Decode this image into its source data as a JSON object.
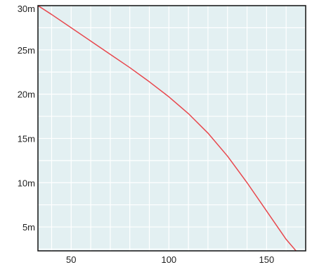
{
  "chart_data": {
    "type": "line",
    "title": "",
    "xlabel": "",
    "ylabel": "",
    "xlim": [
      33,
      170
    ],
    "ylim": [
      2.3,
      30
    ],
    "x_ticks": [
      50,
      100,
      150
    ],
    "x_tick_labels": [
      "50",
      "100",
      "150"
    ],
    "y_ticks": [
      5,
      10,
      15,
      20,
      25,
      30
    ],
    "y_tick_labels": [
      "5m",
      "10m",
      "15m",
      "20m",
      "25m",
      "30m"
    ],
    "grid": true,
    "legend": "none",
    "series": [
      {
        "points": [
          [
            33,
            30.0
          ],
          [
            40,
            29.0
          ],
          [
            50,
            27.5
          ],
          [
            60,
            26.0
          ],
          [
            70,
            24.5
          ],
          [
            80,
            23.0
          ],
          [
            90,
            21.4
          ],
          [
            100,
            19.7
          ],
          [
            110,
            17.8
          ],
          [
            120,
            15.6
          ],
          [
            130,
            13.0
          ],
          [
            140,
            10.0
          ],
          [
            150,
            6.8
          ],
          [
            160,
            3.6
          ],
          [
            167,
            1.8
          ]
        ]
      }
    ],
    "colors": {
      "line": "#e8474d",
      "plot_background": "#e3f0f2",
      "grid": "#ffffff",
      "frame": "#111111"
    }
  }
}
